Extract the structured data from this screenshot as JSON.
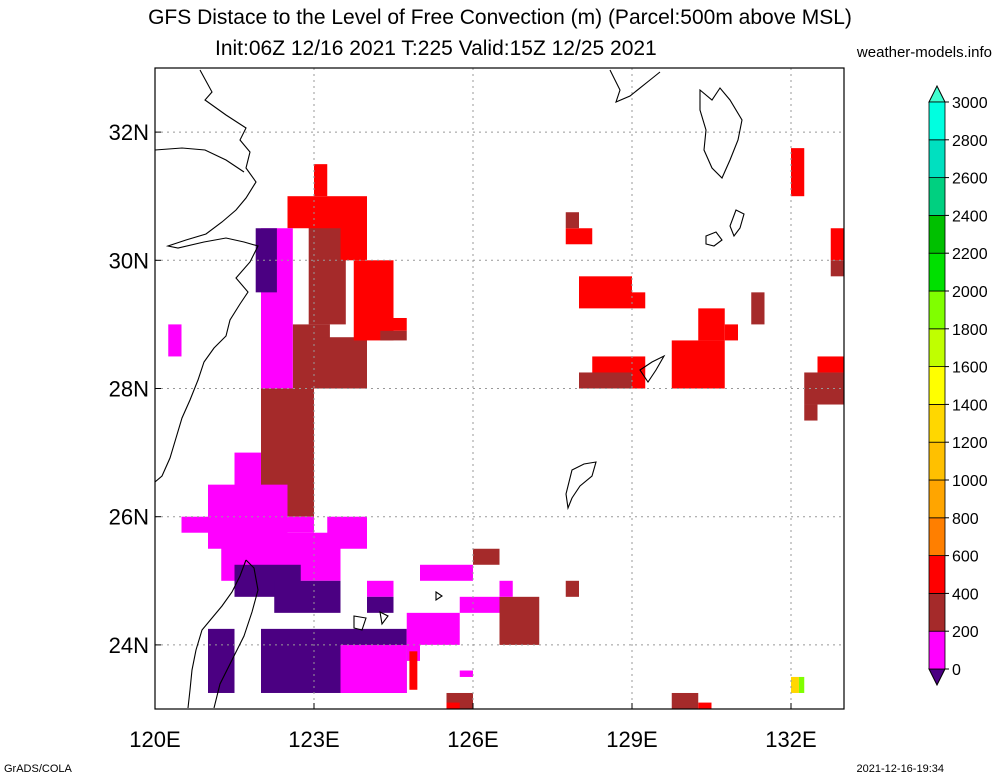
{
  "header": {
    "title": "GFS Distace to the Level of Free Convection (m) (Parcel:500m above MSL)",
    "subtitle": "Init:06Z 12/16 2021 T:225 Valid:15Z 12/25 2021",
    "site": "weather-models.info"
  },
  "footer": {
    "left": "GrADS/COLA",
    "right": "2021-12-16-19:34"
  },
  "map": {
    "lon_range": [
      120,
      133
    ],
    "lat_range": [
      23,
      33
    ],
    "lon_ticks": [
      {
        "value": 120,
        "label": "120E"
      },
      {
        "value": 123,
        "label": "123E"
      },
      {
        "value": 126,
        "label": "126E"
      },
      {
        "value": 129,
        "label": "129E"
      },
      {
        "value": 132,
        "label": "132E"
      }
    ],
    "lat_ticks": [
      {
        "value": 24,
        "label": "24N"
      },
      {
        "value": 26,
        "label": "26N"
      },
      {
        "value": 28,
        "label": "28N"
      },
      {
        "value": 30,
        "label": "30N"
      },
      {
        "value": 32,
        "label": "32N"
      }
    ],
    "grid": true
  },
  "colorbar": {
    "levels": [
      "0",
      "200",
      "400",
      "600",
      "800",
      "1000",
      "1200",
      "1400",
      "1600",
      "1800",
      "2000",
      "2200",
      "2400",
      "2600",
      "2800",
      "3000"
    ],
    "colors": [
      "#4b0082",
      "#ff00ff",
      "#a52a2a",
      "#ff0000",
      "#ff7f00",
      "#ffa500",
      "#ffc000",
      "#ffd700",
      "#ffff00",
      "#c0ff00",
      "#80ff00",
      "#00e000",
      "#00c000",
      "#00d080",
      "#00e0c0",
      "#00ffe0",
      "#40ffd0"
    ]
  },
  "fields": {
    "cell_lat": 0.25,
    "cell_lon": 0.25,
    "rects": [
      {
        "c": "#a52a2a",
        "lon": [
          122.9,
          123.6
        ],
        "lat": [
          29.0,
          30.8
        ]
      },
      {
        "c": "#a52a2a",
        "lon": [
          122.6,
          123.3
        ],
        "lat": [
          28.0,
          29.0
        ]
      },
      {
        "c": "#a52a2a",
        "lon": [
          122.0,
          123.0
        ],
        "lat": [
          26.0,
          28.0
        ]
      },
      {
        "c": "#a52a2a",
        "lon": [
          123.0,
          124.0
        ],
        "lat": [
          28.0,
          28.8
        ]
      },
      {
        "c": "#ff0000",
        "lon": [
          122.5,
          123.5
        ],
        "lat": [
          30.5,
          31.0
        ]
      },
      {
        "c": "#ff0000",
        "lon": [
          123.0,
          123.25
        ],
        "lat": [
          31.0,
          31.5
        ]
      },
      {
        "c": "#ff0000",
        "lon": [
          123.5,
          124.0
        ],
        "lat": [
          30.0,
          31.0
        ]
      },
      {
        "c": "#ff0000",
        "lon": [
          123.75,
          124.5
        ],
        "lat": [
          28.75,
          30.0
        ]
      },
      {
        "c": "#ff0000",
        "lon": [
          124.5,
          124.75
        ],
        "lat": [
          28.9,
          29.1
        ]
      },
      {
        "c": "#a52a2a",
        "lon": [
          124.25,
          124.75
        ],
        "lat": [
          28.75,
          28.9
        ]
      },
      {
        "c": "#ff00ff",
        "lon": [
          122.0,
          122.6
        ],
        "lat": [
          28.0,
          30.5
        ]
      },
      {
        "c": "#4b0082",
        "lon": [
          121.9,
          122.3
        ],
        "lat": [
          29.5,
          30.5
        ]
      },
      {
        "c": "#ff00ff",
        "lon": [
          121.5,
          122.0
        ],
        "lat": [
          26.0,
          27.0
        ]
      },
      {
        "c": "#ff00ff",
        "lon": [
          121.0,
          122.5
        ],
        "lat": [
          25.5,
          26.5
        ]
      },
      {
        "c": "#ff00ff",
        "lon": [
          120.5,
          123.0
        ],
        "lat": [
          25.75,
          26.0
        ]
      },
      {
        "c": "#ff00ff",
        "lon": [
          121.25,
          123.5
        ],
        "lat": [
          25.0,
          25.75
        ]
      },
      {
        "c": "#ff00ff",
        "lon": [
          123.25,
          124.0
        ],
        "lat": [
          25.5,
          26.0
        ]
      },
      {
        "c": "#4b0082",
        "lon": [
          121.5,
          122.75
        ],
        "lat": [
          24.75,
          25.25
        ]
      },
      {
        "c": "#4b0082",
        "lon": [
          122.25,
          123.5
        ],
        "lat": [
          24.5,
          25.0
        ]
      },
      {
        "c": "#4b0082",
        "lon": [
          121.0,
          121.5
        ],
        "lat": [
          23.25,
          24.25
        ]
      },
      {
        "c": "#4b0082",
        "lon": [
          122.0,
          124.75
        ],
        "lat": [
          23.25,
          24.25
        ]
      },
      {
        "c": "#ff00ff",
        "lon": [
          123.5,
          124.75
        ],
        "lat": [
          23.25,
          24.0
        ]
      },
      {
        "c": "#ff00ff",
        "lon": [
          124.75,
          125.0
        ],
        "lat": [
          23.75,
          24.25
        ]
      },
      {
        "c": "#ff0000",
        "lon": [
          124.8,
          124.95
        ],
        "lat": [
          23.3,
          23.9
        ]
      },
      {
        "c": "#ff00ff",
        "lon": [
          124.75,
          125.75
        ],
        "lat": [
          24.0,
          24.5
        ]
      },
      {
        "c": "#ff00ff",
        "lon": [
          124.0,
          124.5
        ],
        "lat": [
          24.75,
          25.0
        ]
      },
      {
        "c": "#4b0082",
        "lon": [
          124.0,
          124.5
        ],
        "lat": [
          24.5,
          24.75
        ]
      },
      {
        "c": "#ff00ff",
        "lon": [
          125.0,
          126.0
        ],
        "lat": [
          25.0,
          25.25
        ]
      },
      {
        "c": "#a52a2a",
        "lon": [
          126.0,
          126.5
        ],
        "lat": [
          25.25,
          25.5
        ]
      },
      {
        "c": "#a52a2a",
        "lon": [
          126.5,
          127.25
        ],
        "lat": [
          24.0,
          24.75
        ]
      },
      {
        "c": "#ff00ff",
        "lon": [
          125.75,
          126.5
        ],
        "lat": [
          24.5,
          24.75
        ]
      },
      {
        "c": "#a52a2a",
        "lon": [
          127.75,
          128.0
        ],
        "lat": [
          24.75,
          25.0
        ]
      },
      {
        "c": "#ff00ff",
        "lon": [
          126.5,
          126.75
        ],
        "lat": [
          24.75,
          25.0
        ]
      },
      {
        "c": "#a52a2a",
        "lon": [
          125.5,
          126.0
        ],
        "lat": [
          23.0,
          23.25
        ]
      },
      {
        "c": "#ff0000",
        "lon": [
          125.5,
          125.75
        ],
        "lat": [
          23.0,
          23.1
        ]
      },
      {
        "c": "#ff00ff",
        "lon": [
          125.75,
          126.0
        ],
        "lat": [
          23.5,
          23.6
        ]
      },
      {
        "c": "#ff0000",
        "lon": [
          128.0,
          129.0
        ],
        "lat": [
          29.25,
          29.75
        ]
      },
      {
        "c": "#ff0000",
        "lon": [
          128.25,
          129.25
        ],
        "lat": [
          28.0,
          28.5
        ]
      },
      {
        "c": "#a52a2a",
        "lon": [
          128.0,
          129.0
        ],
        "lat": [
          28.0,
          28.25
        ]
      },
      {
        "c": "#ff0000",
        "lon": [
          129.0,
          129.25
        ],
        "lat": [
          29.25,
          29.5
        ]
      },
      {
        "c": "#ff0000",
        "lon": [
          127.75,
          128.25
        ],
        "lat": [
          30.25,
          30.5
        ]
      },
      {
        "c": "#a52a2a",
        "lon": [
          127.75,
          128.0
        ],
        "lat": [
          30.5,
          30.75
        ]
      },
      {
        "c": "#ff0000",
        "lon": [
          129.75,
          130.75
        ],
        "lat": [
          28.0,
          28.75
        ]
      },
      {
        "c": "#ff0000",
        "lon": [
          130.25,
          130.75
        ],
        "lat": [
          28.75,
          29.25
        ]
      },
      {
        "c": "#ff0000",
        "lon": [
          130.75,
          131.0
        ],
        "lat": [
          28.75,
          29.0
        ]
      },
      {
        "c": "#a52a2a",
        "lon": [
          131.25,
          131.5
        ],
        "lat": [
          29.0,
          29.5
        ]
      },
      {
        "c": "#ff0000",
        "lon": [
          132.0,
          132.25
        ],
        "lat": [
          31.0,
          31.75
        ]
      },
      {
        "c": "#ff0000",
        "lon": [
          132.75,
          133.0
        ],
        "lat": [
          30.0,
          30.5
        ]
      },
      {
        "c": "#a52a2a",
        "lon": [
          132.75,
          133.0
        ],
        "lat": [
          29.75,
          30.0
        ]
      },
      {
        "c": "#a52a2a",
        "lon": [
          132.25,
          133.0
        ],
        "lat": [
          27.75,
          28.25
        ]
      },
      {
        "c": "#ff0000",
        "lon": [
          132.5,
          133.0
        ],
        "lat": [
          28.25,
          28.5
        ]
      },
      {
        "c": "#a52a2a",
        "lon": [
          132.25,
          132.5
        ],
        "lat": [
          27.5,
          27.75
        ]
      },
      {
        "c": "#ff00ff",
        "lon": [
          120.25,
          120.5
        ],
        "lat": [
          28.5,
          29.0
        ]
      },
      {
        "c": "#a52a2a",
        "lon": [
          129.75,
          130.25
        ],
        "lat": [
          23.0,
          23.25
        ]
      },
      {
        "c": "#ff0000",
        "lon": [
          130.25,
          130.5
        ],
        "lat": [
          23.0,
          23.1
        ]
      },
      {
        "c": "#ffd700",
        "lon": [
          132.0,
          132.15
        ],
        "lat": [
          23.25,
          23.5
        ]
      },
      {
        "c": "#80ff00",
        "lon": [
          132.15,
          132.25
        ],
        "lat": [
          23.25,
          23.5
        ]
      }
    ]
  }
}
